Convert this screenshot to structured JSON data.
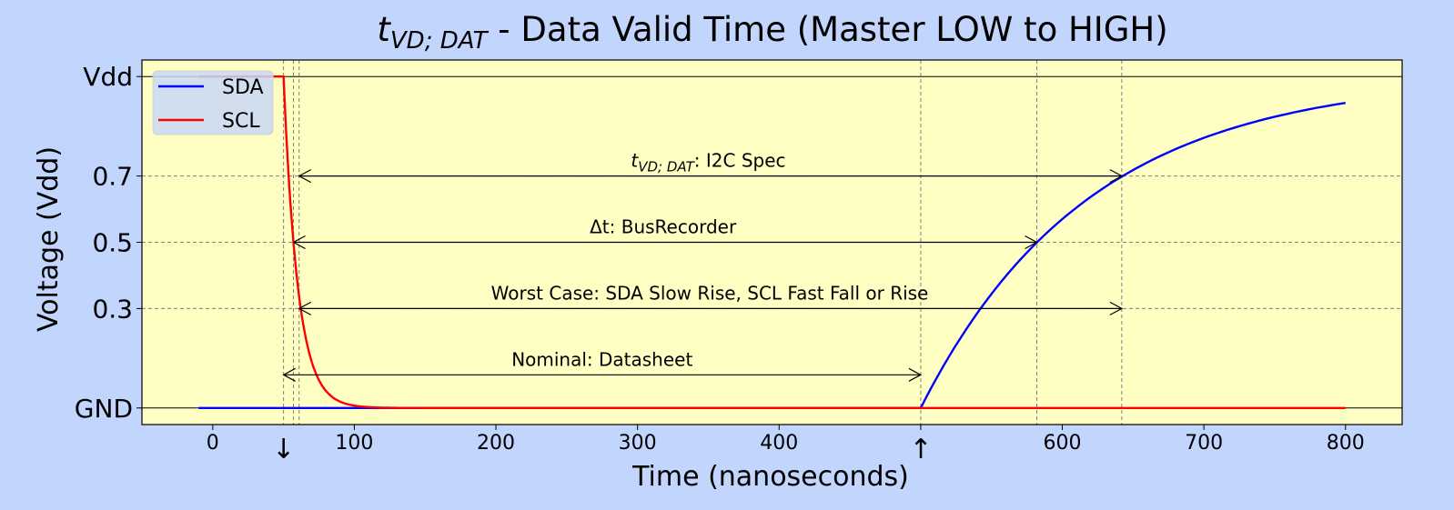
{
  "chart_data": {
    "type": "line",
    "title": {
      "symbol": "t",
      "subscript": "VD; DAT",
      "rest": " - Data Valid Time (Master LOW to HIGH)"
    },
    "xlabel": "Time (nanoseconds)",
    "ylabel": "Voltage (Vdd)",
    "xlim": [
      -50,
      840
    ],
    "ylim": [
      -0.05,
      1.05
    ],
    "xticks": [
      0,
      100,
      200,
      300,
      400,
      500,
      600,
      700,
      800
    ],
    "xtick_labels": [
      "0",
      "100",
      "200",
      "300",
      "400",
      "",
      "600",
      "700",
      "800"
    ],
    "yticks": [
      0,
      0.3,
      0.5,
      0.7,
      1.0
    ],
    "ytick_labels": [
      "GND",
      "0.3",
      "0.5",
      "0.7",
      "Vdd"
    ],
    "hlines": [
      0,
      0.3,
      0.5,
      0.7,
      1.0
    ],
    "vlines": [
      50,
      57,
      61,
      500,
      582,
      642
    ],
    "time_markers": [
      {
        "x": 50,
        "label": "↓"
      },
      {
        "x": 500,
        "label": "↑"
      }
    ],
    "grid": false,
    "legend_position": "top-left",
    "series": [
      {
        "name": "SDA",
        "color": "#0000ff",
        "x": [
          -10,
          500,
          520,
          545,
          582,
          600,
          642,
          680,
          720,
          760,
          800
        ],
        "y": [
          0,
          0,
          0.12,
          0.26,
          0.5,
          0.56,
          0.7,
          0.78,
          0.84,
          0.89,
          0.92
        ]
      },
      {
        "name": "SCL",
        "color": "#ff0000",
        "x": [
          -10,
          50,
          52,
          54,
          57,
          61,
          65,
          70,
          78,
          90,
          105,
          125,
          800
        ],
        "y": [
          1,
          1,
          0.85,
          0.68,
          0.5,
          0.3,
          0.2,
          0.12,
          0.06,
          0.02,
          0.005,
          0.0,
          0
        ]
      }
    ],
    "annotations": [
      {
        "label_symbol": "t",
        "label_sub": "VD; DAT",
        "label_rest": ": I2C Spec",
        "x1": 61,
        "x2": 642,
        "y": 0.7,
        "text_x": 350
      },
      {
        "label_symbol": "",
        "label_sub": "",
        "label_rest": "Δt: BusRecorder",
        "x1": 57,
        "x2": 582,
        "y": 0.5,
        "text_x": 318
      },
      {
        "label_symbol": "",
        "label_sub": "",
        "label_rest": "Worst Case: SDA Slow Rise, SCL Fast Fall or Rise",
        "x1": 61,
        "x2": 642,
        "y": 0.3,
        "text_x": 351
      },
      {
        "label_symbol": "",
        "label_sub": "",
        "label_rest": "Nominal: Datasheet",
        "x1": 50,
        "x2": 500,
        "y": 0.1,
        "text_x": 275
      }
    ]
  },
  "colors": {
    "figure_bg": "#c2d5fd",
    "plot_bg": "#ffffc4"
  }
}
